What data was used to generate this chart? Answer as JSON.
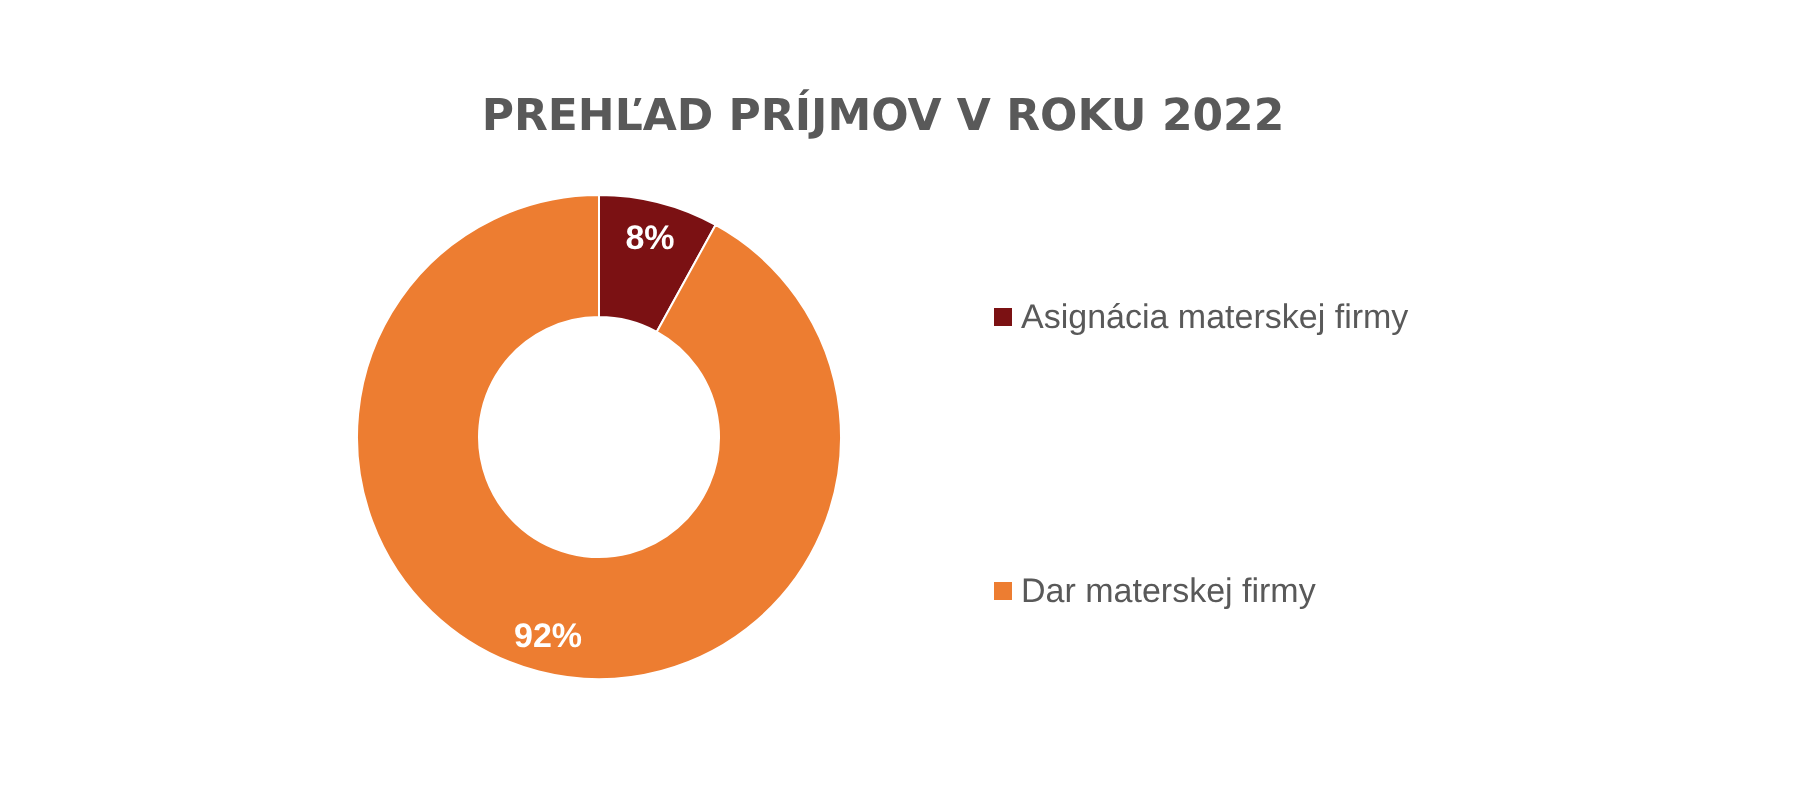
{
  "chart_data": {
    "type": "donut",
    "title": "PREHĽAD PRÍJMOV V ROKU 2022",
    "categories": [
      "Asignácia materskej firmy",
      "Dar materskej firmy"
    ],
    "values": [
      8,
      92
    ],
    "colors": [
      "#7b1113",
      "#ed7d31"
    ],
    "value_labels": [
      "8%",
      "92%"
    ],
    "legend": "right"
  }
}
